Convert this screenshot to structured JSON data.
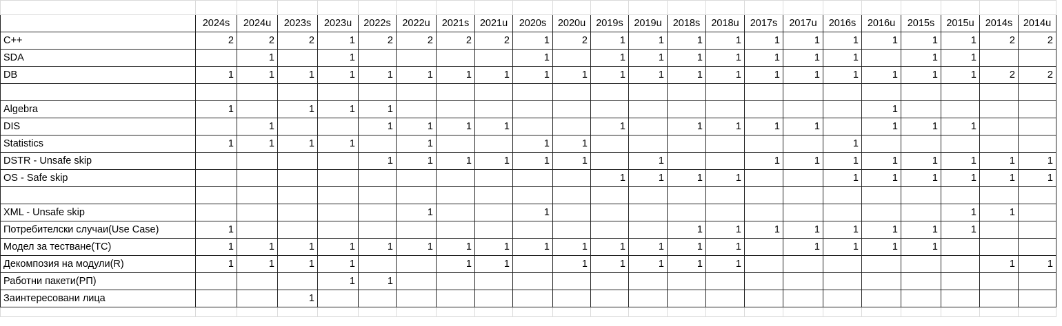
{
  "columns": [
    "2024s",
    "2024u",
    "2023s",
    "2023u",
    "2022s",
    "2022u",
    "2021s",
    "2021u",
    "2020s",
    "2020u",
    "2019s",
    "2019u",
    "2018s",
    "2018u",
    "2017s",
    "2017u",
    "2016s",
    "2016u",
    "2015s",
    "2015u",
    "2014s",
    "2014u"
  ],
  "rows": [
    {
      "label": "C++",
      "cells": [
        "2",
        "2",
        "2",
        "1",
        "2",
        "2",
        "2",
        "2",
        "1",
        "2",
        "1",
        "1",
        "1",
        "1",
        "1",
        "1",
        "1",
        "1",
        "1",
        "1",
        "2",
        "2"
      ]
    },
    {
      "label": "SDA",
      "cells": [
        "",
        "1",
        "",
        "1",
        "",
        "",
        "",
        "",
        "1",
        "",
        "1",
        "1",
        "1",
        "1",
        "1",
        "1",
        "1",
        "",
        "1",
        "1",
        "",
        ""
      ]
    },
    {
      "label": "DB",
      "cells": [
        "1",
        "1",
        "1",
        "1",
        "1",
        "1",
        "1",
        "1",
        "1",
        "1",
        "1",
        "1",
        "1",
        "1",
        "1",
        "1",
        "1",
        "1",
        "1",
        "1",
        "2",
        "2"
      ]
    },
    {
      "label": "",
      "cells": [
        "",
        "",
        "",
        "",
        "",
        "",
        "",
        "",
        "",
        "",
        "",
        "",
        "",
        "",
        "",
        "",
        "",
        "",
        "",
        "",
        "",
        ""
      ]
    },
    {
      "label": "Algebra",
      "cells": [
        "1",
        "",
        "1",
        "1",
        "1",
        "",
        "",
        "",
        "",
        "",
        "",
        "",
        "",
        "",
        "",
        "",
        "",
        "1",
        "",
        "",
        "",
        ""
      ]
    },
    {
      "label": "DIS",
      "cells": [
        "",
        "1",
        "",
        "",
        "1",
        "1",
        "1",
        "1",
        "",
        "",
        "1",
        "",
        "1",
        "1",
        "1",
        "1",
        "",
        "1",
        "1",
        "1",
        "",
        ""
      ]
    },
    {
      "label": "Statistics",
      "cells": [
        "1",
        "1",
        "1",
        "1",
        "",
        "1",
        "",
        "",
        "1",
        "1",
        "",
        "",
        "",
        "",
        "",
        "",
        "1",
        "",
        "",
        "",
        "",
        ""
      ]
    },
    {
      "label": "DSTR - Unsafe skip",
      "cells": [
        "",
        "",
        "",
        "",
        "1",
        "1",
        "1",
        "1",
        "1",
        "1",
        "",
        "1",
        "",
        "",
        "1",
        "1",
        "1",
        "1",
        "1",
        "1",
        "1",
        "1"
      ]
    },
    {
      "label": "OS - Safe skip",
      "cells": [
        "",
        "",
        "",
        "",
        "",
        "",
        "",
        "",
        "",
        "",
        "1",
        "1",
        "1",
        "1",
        "",
        "",
        "1",
        "1",
        "1",
        "1",
        "1",
        "1"
      ]
    },
    {
      "label": "",
      "cells": [
        "",
        "",
        "",
        "",
        "",
        "",
        "",
        "",
        "",
        "",
        "",
        "",
        "",
        "",
        "",
        "",
        "",
        "",
        "",
        "",
        "",
        ""
      ]
    },
    {
      "label": "XML - Unsafe skip",
      "cells": [
        "",
        "",
        "",
        "",
        "",
        "1",
        "",
        "",
        "1",
        "",
        "",
        "",
        "",
        "",
        "",
        "",
        "",
        "",
        "",
        "1",
        "1",
        ""
      ]
    },
    {
      "label": "Потребителски случаи(Use Case)",
      "cells": [
        "1",
        "",
        "",
        "",
        "",
        "",
        "",
        "",
        "",
        "",
        "",
        "",
        "1",
        "1",
        "1",
        "1",
        "1",
        "1",
        "1",
        "1",
        "",
        ""
      ]
    },
    {
      "label": "Модел за тестване(TC)",
      "cells": [
        "1",
        "1",
        "1",
        "1",
        "1",
        "1",
        "1",
        "1",
        "1",
        "1",
        "1",
        "1",
        "1",
        "1",
        "",
        "1",
        "1",
        "1",
        "1",
        "",
        "",
        ""
      ]
    },
    {
      "label": "Декомпозия на модули(R)",
      "cells": [
        "1",
        "1",
        "1",
        "1",
        "",
        "",
        "1",
        "1",
        "",
        "1",
        "1",
        "1",
        "1",
        "1",
        "",
        "",
        "",
        "",
        "",
        "",
        "1",
        "1"
      ]
    },
    {
      "label": "Работни пакети(РП)",
      "cells": [
        "",
        "",
        "",
        "1",
        "1",
        "",
        "",
        "",
        "",
        "",
        "",
        "",
        "",
        "",
        "",
        "",
        "",
        "",
        "",
        "",
        "",
        ""
      ]
    },
    {
      "label": "Заинтересовани лица",
      "cells": [
        "",
        "",
        "1",
        "",
        "",
        "",
        "",
        "",
        "",
        "",
        "",
        "",
        "",
        "",
        "",
        "",
        "",
        "",
        "",
        "",
        "",
        ""
      ]
    }
  ]
}
